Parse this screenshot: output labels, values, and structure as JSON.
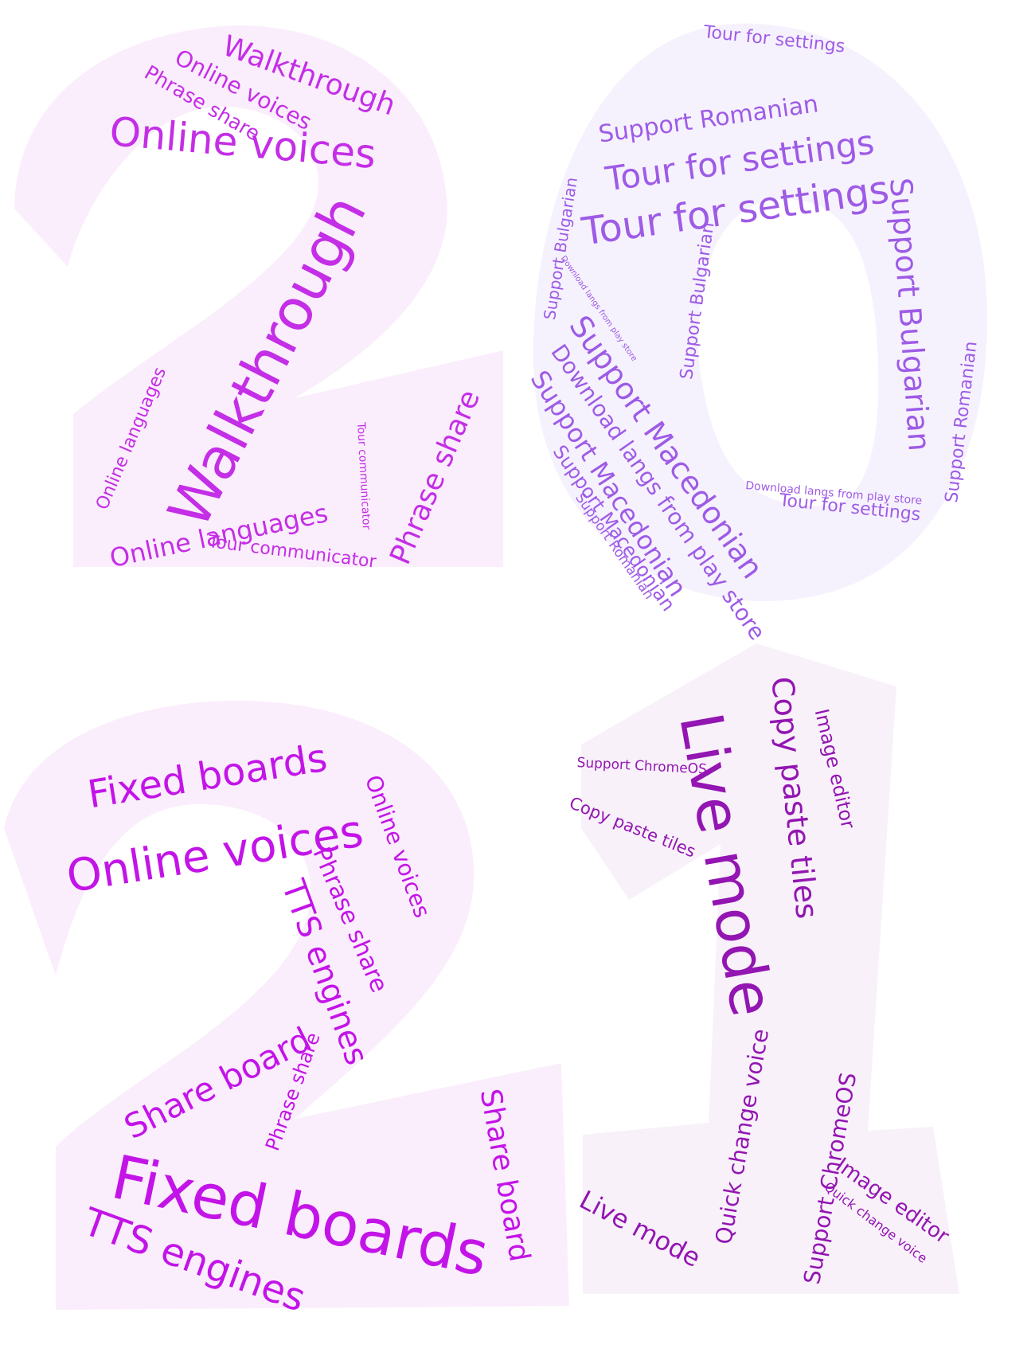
{
  "colors": {
    "shape_2_top": "#fbeefc",
    "shape_0": "#f6f2fd",
    "shape_2_bottom": "#fbeefc",
    "shape_1": "#f8f1fa",
    "text_2_top": "#c42ee6",
    "text_0": "#9e5be6",
    "text_2_bottom": "#c314e8",
    "text_1": "#9315b2"
  },
  "clouds": [
    {
      "key": "digit-2-top",
      "words": [
        {
          "text": "Walkthrough"
        },
        {
          "text": "Online voices"
        },
        {
          "text": "Phrase share"
        },
        {
          "text": "Online voices"
        },
        {
          "text": "Walkthrough"
        },
        {
          "text": "Online languages"
        },
        {
          "text": "Online languages"
        },
        {
          "text": "Tour communicator"
        },
        {
          "text": "Tour communicator"
        },
        {
          "text": "Phrase share"
        }
      ]
    },
    {
      "key": "digit-0",
      "words": [
        {
          "text": "Tour for settings"
        },
        {
          "text": "Support Romanian"
        },
        {
          "text": "Tour for settings"
        },
        {
          "text": "Tour for settings"
        },
        {
          "text": "Support Bulgarian"
        },
        {
          "text": "Download langs from play store"
        },
        {
          "text": "Support Bulgarian"
        },
        {
          "text": "Support Bulgarian"
        },
        {
          "text": "Support Romanian"
        },
        {
          "text": "Support Macedonian"
        },
        {
          "text": "Download langs from play store"
        },
        {
          "text": "Support Macedonian"
        },
        {
          "text": "Support Macedonian"
        },
        {
          "text": "Support Romanian"
        },
        {
          "text": "Download langs from play store"
        },
        {
          "text": "Tour for settings"
        }
      ]
    },
    {
      "key": "digit-2-bottom",
      "words": [
        {
          "text": "Fixed boards"
        },
        {
          "text": "Online voices"
        },
        {
          "text": "Online voices"
        },
        {
          "text": "Phrase share"
        },
        {
          "text": "TTS engines"
        },
        {
          "text": "Share board"
        },
        {
          "text": "Phrase share"
        },
        {
          "text": "Fixed boards"
        },
        {
          "text": "TTS engines"
        },
        {
          "text": "Share board"
        }
      ]
    },
    {
      "key": "digit-1",
      "words": [
        {
          "text": "Support ChromeOS"
        },
        {
          "text": "Copy paste tiles"
        },
        {
          "text": "Live mode"
        },
        {
          "text": "Copy paste tiles"
        },
        {
          "text": "Image editor"
        },
        {
          "text": "Quick change voice"
        },
        {
          "text": "Support ChromeOS"
        },
        {
          "text": "Live mode"
        },
        {
          "text": "Image editor"
        },
        {
          "text": "Quick change voice"
        }
      ]
    }
  ]
}
